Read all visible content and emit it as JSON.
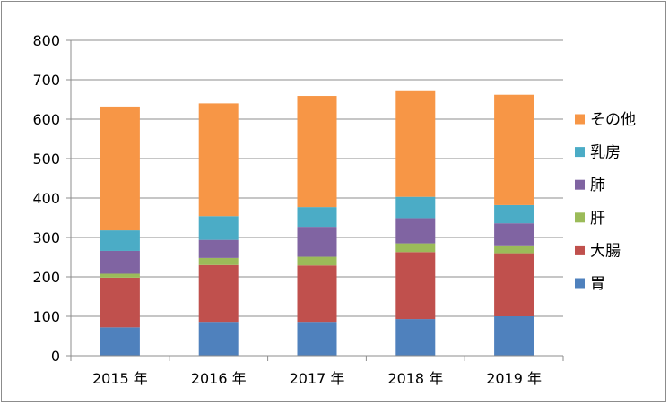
{
  "chart_data": {
    "type": "bar",
    "stacked": true,
    "categories": [
      "2015 年",
      "2016 年",
      "2017 年",
      "2018 年",
      "2019 年"
    ],
    "series": [
      {
        "name": "胃",
        "color": "#4F81BD",
        "values": [
          72,
          86,
          86,
          93,
          100
        ]
      },
      {
        "name": "大腸",
        "color": "#C0504D",
        "values": [
          126,
          144,
          143,
          170,
          160
        ]
      },
      {
        "name": "肝",
        "color": "#9BBB59",
        "values": [
          10,
          18,
          22,
          22,
          20
        ]
      },
      {
        "name": "肺",
        "color": "#8064A2",
        "values": [
          58,
          46,
          76,
          64,
          56
        ]
      },
      {
        "name": "乳房",
        "color": "#4BACC6",
        "values": [
          52,
          60,
          50,
          54,
          46
        ]
      },
      {
        "name": "その他",
        "color": "#F79646",
        "values": [
          314,
          286,
          282,
          268,
          280
        ]
      }
    ],
    "title": "",
    "xlabel": "",
    "ylabel": "",
    "ylim": [
      0,
      800
    ],
    "yticks": [
      "0",
      "100",
      "200",
      "300",
      "400",
      "500",
      "600",
      "700",
      "800"
    ],
    "grid": true,
    "legend_position": "right"
  }
}
